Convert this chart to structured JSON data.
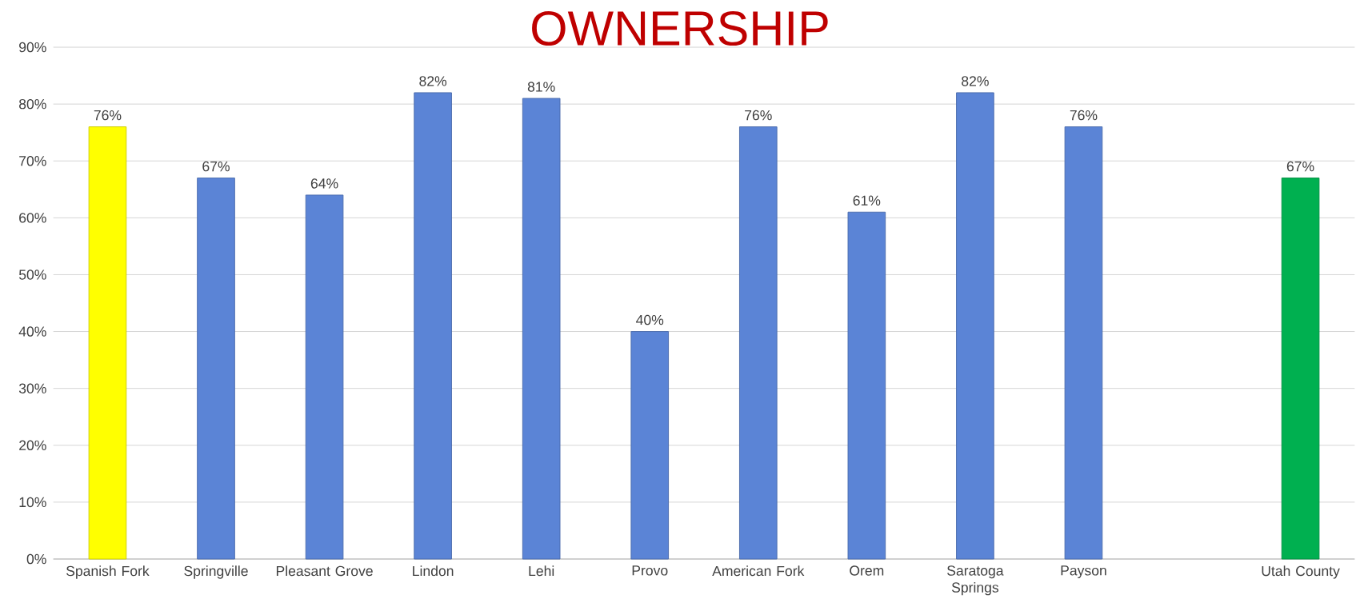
{
  "chart_data": {
    "type": "bar",
    "title": "OWNERSHIP",
    "categories": [
      "Spanish Fork",
      "Springville",
      "Pleasant Grove",
      "Lindon",
      "Lehi",
      "Provo",
      "American Fork",
      "Orem",
      "Saratoga Springs",
      "Payson",
      null,
      "Utah County"
    ],
    "values": [
      76,
      67,
      64,
      82,
      81,
      40,
      76,
      61,
      82,
      76,
      null,
      67
    ],
    "colors": [
      "#ffff00",
      "#5b84d6",
      "#5b84d6",
      "#5b84d6",
      "#5b84d6",
      "#5b84d6",
      "#5b84d6",
      "#5b84d6",
      "#5b84d6",
      "#5b84d6",
      "#5b84d6",
      "#00b050"
    ],
    "value_labels": [
      "76%",
      "67%",
      "64%",
      "82%",
      "81%",
      "40%",
      "76%",
      "61%",
      "82%",
      "76%",
      null,
      "67%"
    ],
    "ylim": [
      0,
      90
    ],
    "yticks": [
      {
        "value": 0,
        "label": "0%"
      },
      {
        "value": 10,
        "label": "10%"
      },
      {
        "value": 20,
        "label": "20%"
      },
      {
        "value": 30,
        "label": "30%"
      },
      {
        "value": 40,
        "label": "40%"
      },
      {
        "value": 50,
        "label": "50%"
      },
      {
        "value": 60,
        "label": "60%"
      },
      {
        "value": 70,
        "label": "70%"
      },
      {
        "value": 80,
        "label": "80%"
      },
      {
        "value": 90,
        "label": "90%"
      }
    ],
    "grid": "y"
  }
}
